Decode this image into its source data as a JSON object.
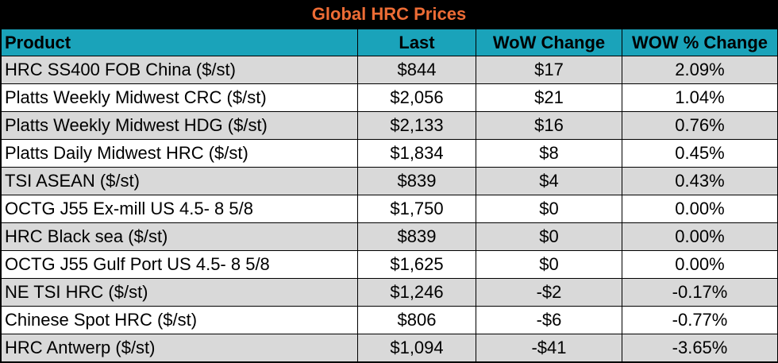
{
  "chart_data": {
    "type": "table",
    "title": "Global HRC Prices",
    "columns": [
      "Product",
      "Last",
      "WoW Change",
      "WOW % Change"
    ],
    "rows": [
      {
        "product": "HRC SS400 FOB China ($/st)",
        "last": "$844",
        "wow_change": "$17",
        "wow_pct": "2.09%"
      },
      {
        "product": "Platts Weekly Midwest CRC ($/st)",
        "last": "$2,056",
        "wow_change": "$21",
        "wow_pct": "1.04%"
      },
      {
        "product": "Platts Weekly Midwest HDG ($/st)",
        "last": "$2,133",
        "wow_change": "$16",
        "wow_pct": "0.76%"
      },
      {
        "product": "Platts Daily Midwest HRC ($/st)",
        "last": "$1,834",
        "wow_change": "$8",
        "wow_pct": "0.45%"
      },
      {
        "product": "TSI ASEAN ($/st)",
        "last": "$839",
        "wow_change": "$4",
        "wow_pct": "0.43%"
      },
      {
        "product": "OCTG J55 Ex-mill US 4.5- 8 5/8",
        "last": "$1,750",
        "wow_change": "$0",
        "wow_pct": "0.00%"
      },
      {
        "product": "HRC Black sea ($/st)",
        "last": "$839",
        "wow_change": "$0",
        "wow_pct": "0.00%"
      },
      {
        "product": "OCTG J55 Gulf Port US 4.5- 8 5/8",
        "last": "$1,625",
        "wow_change": "$0",
        "wow_pct": "0.00%"
      },
      {
        "product": "NE TSI HRC ($/st)",
        "last": "$1,246",
        "wow_change": "-$2",
        "wow_pct": "-0.17%"
      },
      {
        "product": "Chinese Spot HRC ($/st)",
        "last": "$806",
        "wow_change": "-$6",
        "wow_pct": "-0.77%"
      },
      {
        "product": "HRC Antwerp ($/st)",
        "last": "$1,094",
        "wow_change": "-$41",
        "wow_pct": "-3.65%"
      }
    ],
    "colors": {
      "title_bg": "#000000",
      "title_text": "#ED6C35",
      "header_bg": "#1AA3BA",
      "row_shade": "#D9D9D9",
      "row_plain": "#FFFFFF"
    }
  }
}
